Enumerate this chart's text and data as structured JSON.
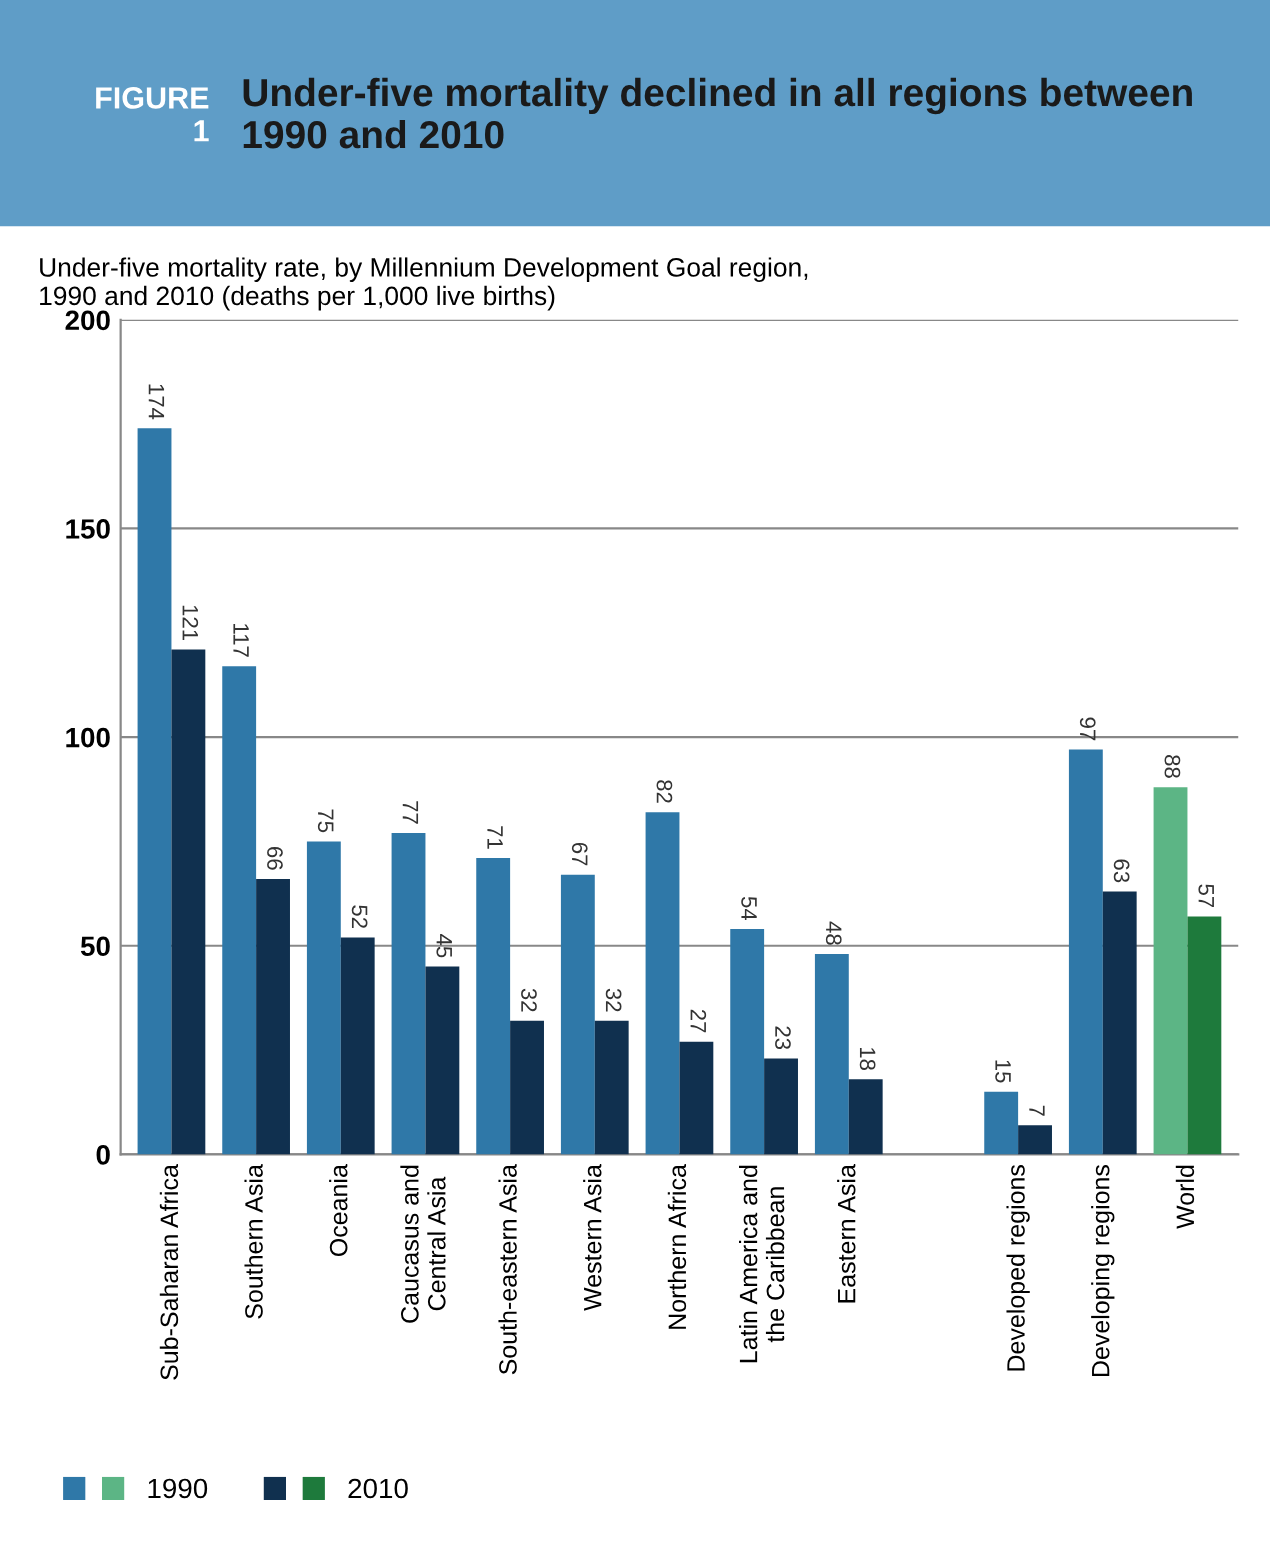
{
  "chart_data": {
    "type": "bar",
    "title": "Under-five mortality declined in all regions between 1990 and 2010",
    "subtitle": "Under-five mortality rate, by Millennium Development Goal region,\n1990 and 2010 (deaths per 1,000 live births)",
    "annotations": [
      "FIGURE\n1"
    ],
    "categories": [
      "Sub-Saharan Africa",
      "Southern Asia",
      "Oceania",
      "Caucasus and\nCentral Asia",
      "South-eastern Asia",
      "Western Asia",
      "Northern Africa",
      "Latin America and\nthe Caribbean",
      "Eastern Asia",
      null,
      "Developed regions",
      "Developing regions",
      "World"
    ],
    "series": [
      {
        "name": "1990",
        "color": "#2f78a8",
        "colors": [
          "#2f78a8",
          "#2f78a8",
          "#2f78a8",
          "#2f78a8",
          "#2f78a8",
          "#2f78a8",
          "#2f78a8",
          "#2f78a8",
          "#2f78a8",
          "#2f78a8",
          "#2f78a8",
          "#2f78a8",
          "#5cb585"
        ],
        "values": [
          174,
          117,
          75,
          77,
          71,
          67,
          82,
          54,
          48,
          null,
          15,
          97,
          88
        ]
      },
      {
        "name": "2010",
        "color": "#10304f",
        "colors": [
          "#10304f",
          "#10304f",
          "#10304f",
          "#10304f",
          "#10304f",
          "#10304f",
          "#10304f",
          "#10304f",
          "#10304f",
          "#10304f",
          "#10304f",
          "#10304f",
          "#1e7a3c"
        ],
        "values": [
          121,
          66,
          52,
          45,
          32,
          32,
          27,
          23,
          18,
          null,
          7,
          63,
          57
        ]
      }
    ],
    "ylim": [
      0,
      200
    ],
    "yticks": [
      0,
      50,
      100,
      150,
      200
    ],
    "grid": "y",
    "data_labels": true,
    "legend": "bottom left"
  }
}
